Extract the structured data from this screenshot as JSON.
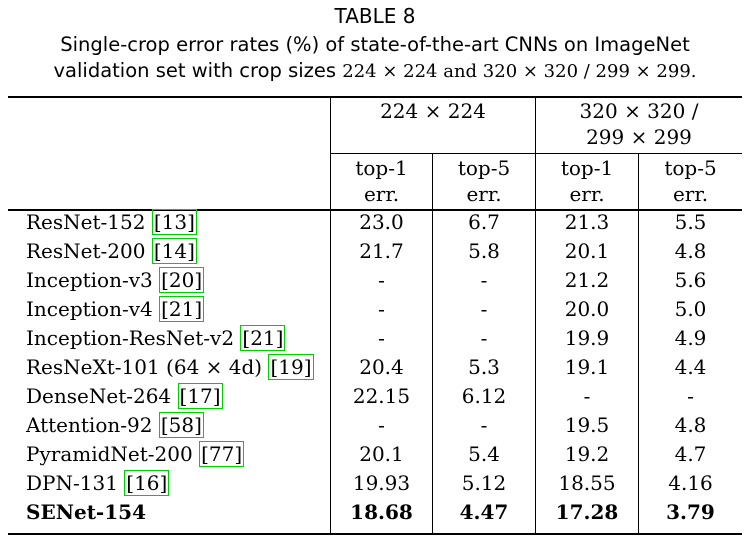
{
  "table_title": "TABLE 8",
  "caption": {
    "line1": "Single-crop error rates (%) of state-of-the-art CNNs on ImageNet",
    "line2_prefix": "validation set with crop sizes",
    "line2_math": "224 × 224 and 320 × 320 / 299 × 299."
  },
  "headers": {
    "group1": "224 × 224",
    "group2_line1": "320 × 320 /",
    "group2_line2": "299 × 299",
    "top1_line1": "top-1",
    "top1_line2": "err.",
    "top5_line1": "top-5",
    "top5_line2": "err."
  },
  "rows": [
    {
      "name": "ResNet-152 ",
      "ref": "[13]",
      "v": [
        "23.0",
        "6.7",
        "21.3",
        "5.5"
      ],
      "bold": false
    },
    {
      "name": "ResNet-200 ",
      "ref": "[14]",
      "v": [
        "21.7",
        "5.8",
        "20.1",
        "4.8"
      ],
      "bold": false
    },
    {
      "name": "Inception-v3 ",
      "ref": "[20]",
      "v": [
        "-",
        "-",
        "21.2",
        "5.6"
      ],
      "bold": false
    },
    {
      "name": "Inception-v4 ",
      "ref": "[21]",
      "v": [
        "-",
        "-",
        "20.0",
        "5.0"
      ],
      "bold": false
    },
    {
      "name": "Inception-ResNet-v2 ",
      "ref": "[21]",
      "v": [
        "-",
        "-",
        "19.9",
        "4.9"
      ],
      "bold": false
    },
    {
      "name": "ResNeXt-101 (64 × 4d) ",
      "ref": "[19]",
      "v": [
        "20.4",
        "5.3",
        "19.1",
        "4.4"
      ],
      "bold": false
    },
    {
      "name": "DenseNet-264 ",
      "ref": "[17]",
      "v": [
        "22.15",
        "6.12",
        "-",
        "-"
      ],
      "bold": false
    },
    {
      "name": "Attention-92 ",
      "ref": "[58]",
      "v": [
        "-",
        "-",
        "19.5",
        "4.8"
      ],
      "bold": false
    },
    {
      "name": "PyramidNet-200 ",
      "ref": "[77]",
      "v": [
        "20.1",
        "5.4",
        "19.2",
        "4.7"
      ],
      "bold": false
    },
    {
      "name": "DPN-131 ",
      "ref": "[16]",
      "v": [
        "19.93",
        "5.12",
        "18.55",
        "4.16"
      ],
      "bold": false
    },
    {
      "name": "SENet-154",
      "ref": "",
      "v": [
        "18.68",
        "4.47",
        "17.28",
        "3.79"
      ],
      "bold": true
    }
  ]
}
